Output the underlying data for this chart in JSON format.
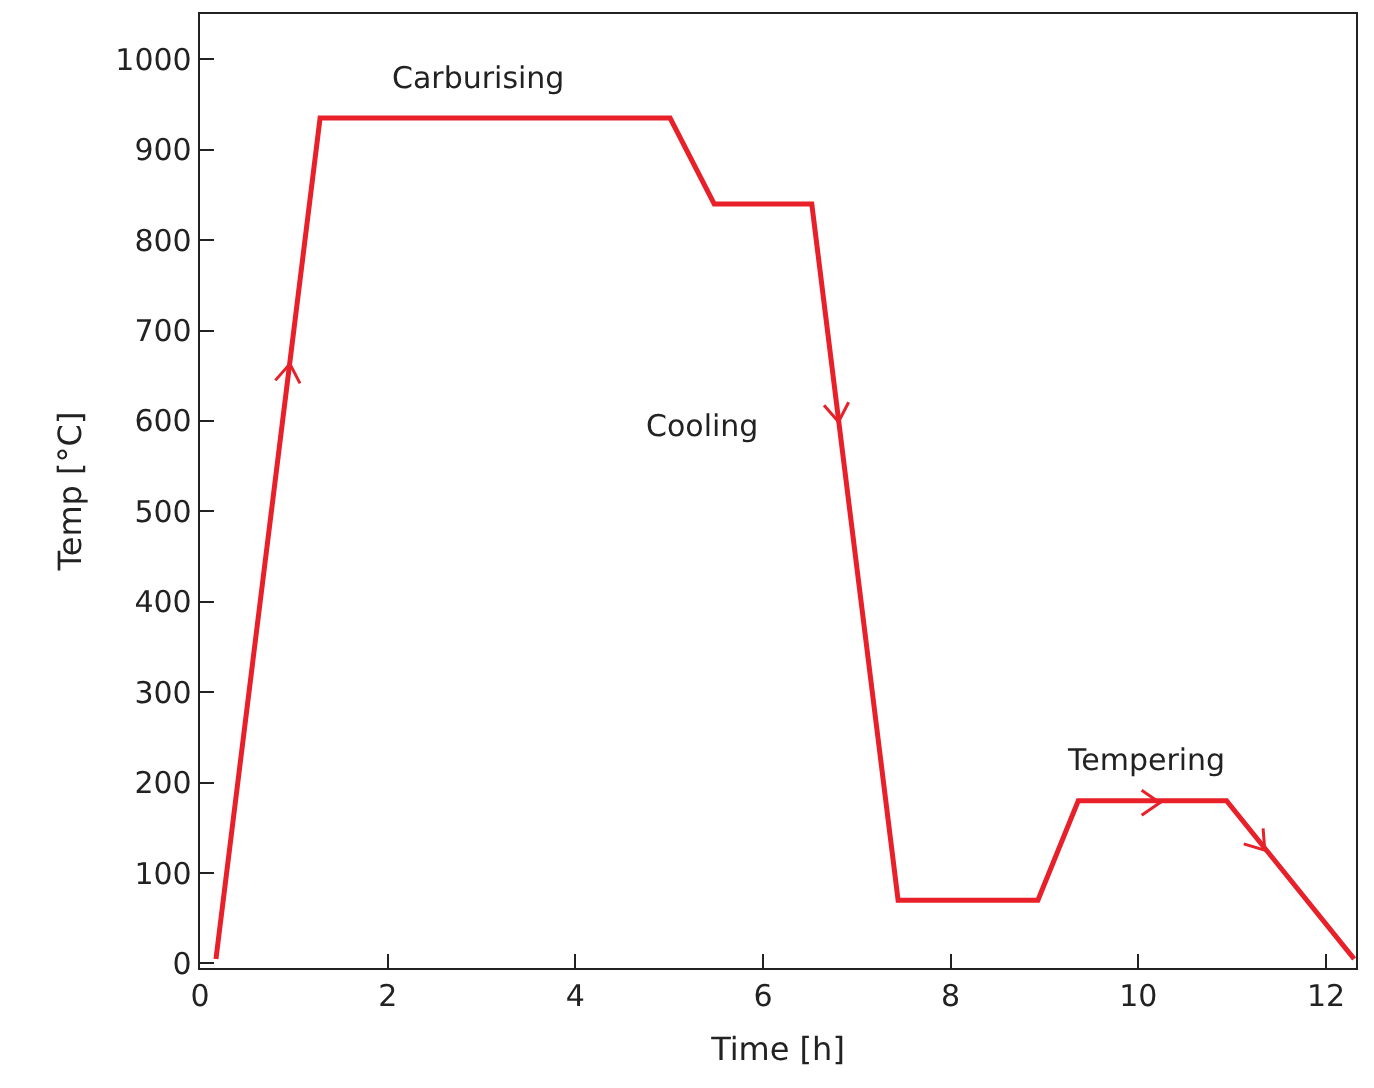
{
  "chart_data": {
    "type": "line",
    "xlabel": "Time [h]",
    "ylabel": "Temp [°C]",
    "x": [
      0.17,
      1.28,
      5.01,
      5.48,
      6.52,
      7.44,
      8.93,
      9.36,
      10.94,
      12.3
    ],
    "series": [
      {
        "color": "#e8202a",
        "values": [
          5,
          935,
          935,
          840,
          840,
          70,
          70,
          180,
          180,
          5
        ]
      }
    ],
    "xlim": [
      0,
      12.32
    ],
    "xticks": [
      0,
      2,
      4,
      6,
      8,
      10,
      12
    ],
    "ylim": [
      -5,
      1050
    ],
    "yticks": [
      0,
      100,
      200,
      300,
      400,
      500,
      600,
      700,
      800,
      900,
      1000
    ],
    "grid": false,
    "marker": "none",
    "line_style": "solid",
    "annotations": [
      "Carburising",
      "Cooling",
      "Tempering"
    ]
  }
}
